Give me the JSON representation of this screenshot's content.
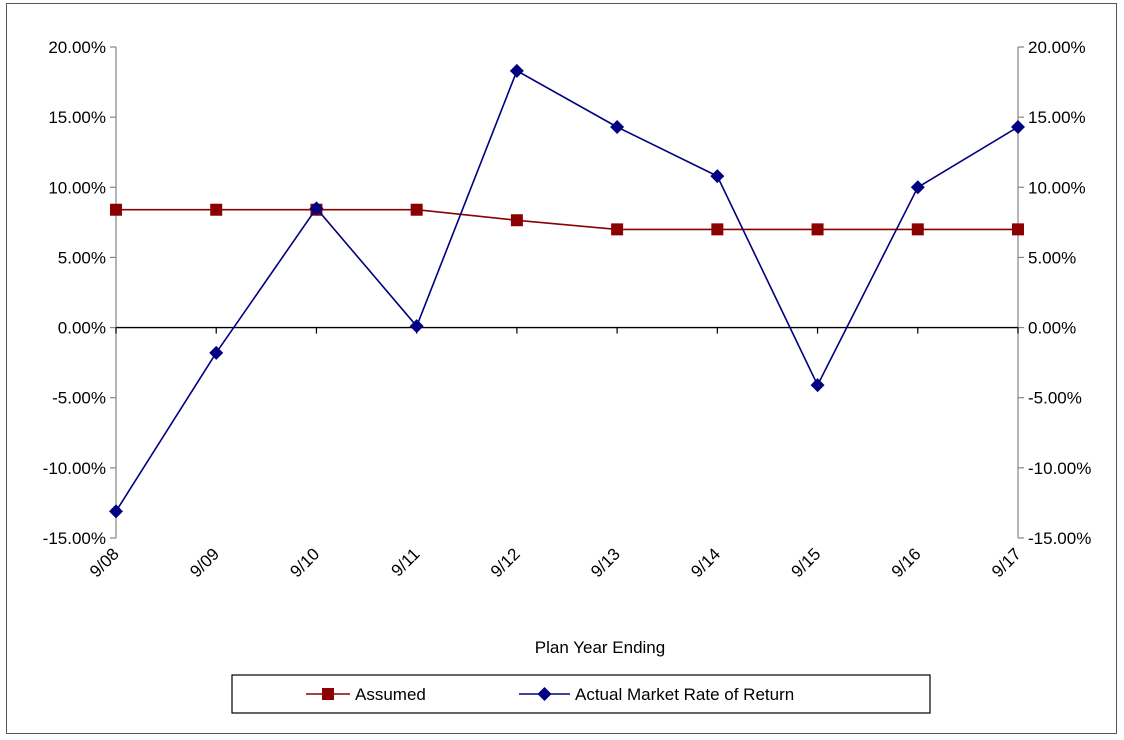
{
  "chart_data": {
    "type": "line",
    "title": "",
    "xlabel": "Plan Year Ending",
    "ylabel": "",
    "categories": [
      "9/08",
      "9/09",
      "9/10",
      "9/11",
      "9/12",
      "9/13",
      "9/14",
      "9/15",
      "9/16",
      "9/17"
    ],
    "ylim": [
      -0.15,
      0.2
    ],
    "yticks": [
      0.2,
      0.15,
      0.1,
      0.05,
      0.0,
      -0.05,
      -0.1,
      -0.15
    ],
    "ytick_labels": [
      "20.00%",
      "15.00%",
      "10.00%",
      "5.00%",
      "0.00%",
      "-5.00%",
      "-10.00%",
      "-15.00%"
    ],
    "secondary_y_axis": true,
    "grid": false,
    "legend_position": "bottom",
    "series": [
      {
        "name": "Assumed",
        "marker": "square",
        "color": "#8B0000",
        "values": [
          0.084,
          0.084,
          0.084,
          0.084,
          0.0765,
          0.07,
          0.07,
          0.07,
          0.07,
          0.07
        ]
      },
      {
        "name": "Actual Market Rate of Return",
        "marker": "diamond",
        "color": "#000080",
        "values": [
          -0.131,
          -0.018,
          0.085,
          0.001,
          0.183,
          0.143,
          0.108,
          -0.041,
          0.1,
          0.143
        ]
      }
    ]
  }
}
